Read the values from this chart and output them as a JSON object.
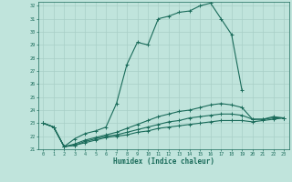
{
  "xlabel": "Humidex (Indice chaleur)",
  "bg_color": "#c0e4dc",
  "line_color": "#1a6b5a",
  "grid_color": "#a8cfc7",
  "xlim": [
    -0.5,
    23.5
  ],
  "ylim": [
    21,
    32.3
  ],
  "xticks": [
    0,
    1,
    2,
    3,
    4,
    5,
    6,
    7,
    8,
    9,
    10,
    11,
    12,
    13,
    14,
    15,
    16,
    17,
    18,
    19,
    20,
    21,
    22,
    23
  ],
  "yticks": [
    21,
    22,
    23,
    24,
    25,
    26,
    27,
    28,
    29,
    30,
    31,
    32
  ],
  "series": [
    {
      "x": [
        0,
        1,
        2,
        3,
        4,
        5,
        6,
        7,
        8,
        9,
        10,
        11,
        12,
        13,
        14,
        15,
        16,
        17,
        18,
        19
      ],
      "y": [
        23.0,
        22.7,
        21.2,
        21.8,
        22.2,
        22.4,
        22.7,
        24.5,
        27.5,
        29.2,
        29.0,
        31.0,
        31.2,
        31.5,
        31.6,
        32.0,
        32.2,
        31.0,
        29.8,
        25.5
      ]
    },
    {
      "x": [
        0,
        1,
        2,
        3,
        4,
        5,
        6,
        7,
        8,
        9,
        10,
        11,
        12,
        13,
        14,
        15,
        16,
        17,
        18,
        19,
        20,
        21,
        22,
        23
      ],
      "y": [
        23.0,
        22.7,
        21.2,
        21.4,
        21.7,
        21.9,
        22.1,
        22.3,
        22.6,
        22.9,
        23.2,
        23.5,
        23.7,
        23.9,
        24.0,
        24.2,
        24.4,
        24.5,
        24.4,
        24.2,
        23.3,
        23.3,
        23.5,
        23.4
      ]
    },
    {
      "x": [
        0,
        1,
        2,
        3,
        4,
        5,
        6,
        7,
        8,
        9,
        10,
        11,
        12,
        13,
        14,
        15,
        16,
        17,
        18,
        19,
        20,
        21,
        22,
        23
      ],
      "y": [
        23.0,
        22.7,
        21.2,
        21.3,
        21.6,
        21.8,
        22.0,
        22.1,
        22.3,
        22.5,
        22.7,
        22.9,
        23.1,
        23.2,
        23.4,
        23.5,
        23.6,
        23.7,
        23.7,
        23.6,
        23.3,
        23.3,
        23.4,
        23.4
      ]
    },
    {
      "x": [
        0,
        1,
        2,
        3,
        4,
        5,
        6,
        7,
        8,
        9,
        10,
        11,
        12,
        13,
        14,
        15,
        16,
        17,
        18,
        19,
        20,
        21,
        22,
        23
      ],
      "y": [
        23.0,
        22.7,
        21.2,
        21.3,
        21.5,
        21.7,
        21.9,
        22.0,
        22.1,
        22.3,
        22.4,
        22.6,
        22.7,
        22.8,
        22.9,
        23.0,
        23.1,
        23.2,
        23.2,
        23.2,
        23.1,
        23.2,
        23.3,
        23.4
      ]
    }
  ]
}
